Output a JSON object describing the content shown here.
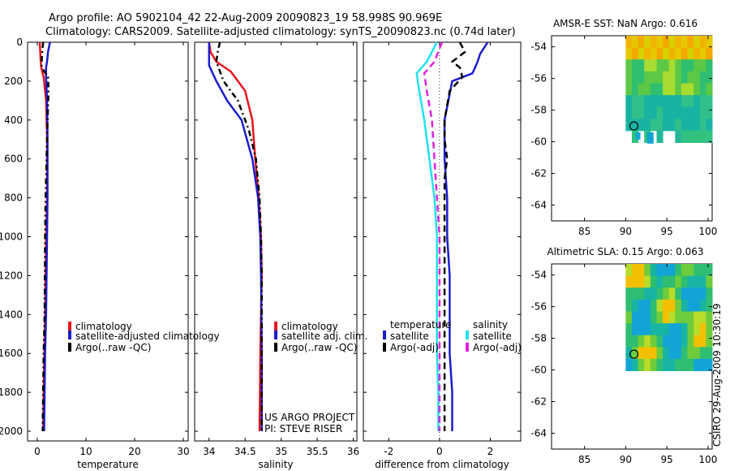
{
  "title_line1": "Argo profile: AO 5902104_42 22-Aug-2009 20090823_19 58.998S 90.969E",
  "title_line2": "Climatology: CARS2009. Satellite-adjusted climatology: synTS_20090823.nc (0.74d later)",
  "credit": "CSIRO 29-Aug-2009 10:30:19",
  "colors": {
    "climatology": "#e8141c",
    "satellite": "#1c1ccc",
    "argo": "#000000",
    "cyan": "#22e0ee",
    "magenta": "#e020e0"
  },
  "depth_axis": {
    "ylim": [
      0,
      2050
    ],
    "ticks": [
      0,
      200,
      400,
      600,
      800,
      1000,
      1200,
      1400,
      1600,
      1800,
      2000
    ]
  },
  "chart_data": [
    {
      "name": "temperature",
      "type": "line",
      "xlabel": "temperature",
      "xlim": [
        -2,
        31
      ],
      "xticks": [
        0,
        10,
        20,
        30
      ],
      "legend": [
        "climatology",
        "satellite-adjusted climatology",
        "Argo(..raw -QC)"
      ],
      "series": [
        {
          "name": "climatology",
          "x": [
            0.5,
            0.6,
            0.7,
            0.8,
            1.3,
            1.8,
            2.0,
            2.0,
            1.8,
            1.6,
            1.3,
            1.2
          ],
          "depth": [
            0,
            50,
            100,
            130,
            180,
            300,
            500,
            800,
            1000,
            1400,
            1800,
            2000
          ]
        },
        {
          "name": "satellite-adjusted climatology",
          "x": [
            2.6,
            2.2,
            2.0,
            1.8,
            1.8,
            2.0,
            2.1,
            2.1,
            2.0,
            1.8,
            1.6,
            1.5,
            1.4
          ],
          "depth": [
            0,
            50,
            100,
            130,
            180,
            300,
            500,
            800,
            1000,
            1400,
            1600,
            1800,
            2000
          ]
        },
        {
          "name": "Argo(..raw -QC)",
          "x": [
            1.2,
            1.0,
            0.9,
            0.9,
            2.2,
            2.3,
            2.0,
            1.7,
            1.6,
            1.5,
            1.3,
            1.2,
            1.1
          ],
          "depth": [
            0,
            50,
            100,
            130,
            180,
            250,
            500,
            800,
            1000,
            1400,
            1600,
            1800,
            2000
          ]
        }
      ]
    },
    {
      "name": "salinity",
      "type": "line",
      "xlabel": "salinity",
      "xlim": [
        33.8,
        36.05
      ],
      "xticks": [
        34,
        34.5,
        35,
        35.5,
        36
      ],
      "legend": [
        "climatology",
        "satellite adj. clim.",
        "Argo(..raw -QC)"
      ],
      "annotation": [
        "US ARGO PROJECT",
        "PI: STEVE RISER"
      ],
      "series": [
        {
          "name": "climatology",
          "x": [
            34.0,
            34.02,
            34.1,
            34.3,
            34.5,
            34.6,
            34.64,
            34.69,
            34.72,
            34.73,
            34.72,
            34.71,
            34.7
          ],
          "depth": [
            0,
            50,
            100,
            150,
            250,
            400,
            600,
            800,
            1000,
            1200,
            1400,
            1600,
            2000
          ]
        },
        {
          "name": "satellite adj. clim.",
          "x": [
            34.0,
            34.0,
            34.0,
            34.1,
            34.25,
            34.45,
            34.6,
            34.68,
            34.71,
            34.72,
            34.73,
            34.73
          ],
          "depth": [
            0,
            80,
            120,
            200,
            300,
            400,
            600,
            800,
            1000,
            1200,
            1600,
            2000
          ]
        },
        {
          "name": "Argo(..raw -QC)",
          "x": [
            34.15,
            34.12,
            34.1,
            34.2,
            34.4,
            34.55,
            34.65,
            34.7,
            34.72,
            34.73,
            34.73
          ],
          "depth": [
            0,
            50,
            100,
            200,
            300,
            450,
            600,
            800,
            1000,
            1200,
            2000
          ]
        }
      ]
    },
    {
      "name": "difference",
      "type": "line",
      "xlabel": "difference from climatology",
      "xlim": [
        -3,
        3.2
      ],
      "xticks": [
        -2,
        0,
        2
      ],
      "legend_left": {
        "title": "temperature",
        "items": [
          "satellite",
          "Argo(-adj)"
        ]
      },
      "legend_right": {
        "title": "salinity",
        "items": [
          "satellite",
          "Argo(-adj)"
        ]
      },
      "series": [
        {
          "name": "temperature satellite",
          "x": [
            1.9,
            1.6,
            1.5,
            1.4,
            1.3,
            0.5,
            0.2,
            0.2,
            0.3,
            0.3,
            0.4,
            0.4,
            0.4,
            0.5,
            0.5
          ],
          "depth": [
            0,
            60,
            100,
            130,
            160,
            200,
            400,
            600,
            800,
            1000,
            1200,
            1400,
            1600,
            1800,
            2000
          ]
        },
        {
          "name": "temperature Argo(-adj)",
          "x": [
            0.8,
            1.0,
            0.5,
            0.8,
            0.9,
            0.4,
            0.2,
            0.2,
            0.3,
            0.2,
            0.2,
            0.2,
            0.2,
            0.2,
            0.2,
            0.2
          ],
          "depth": [
            0,
            50,
            100,
            130,
            180,
            250,
            400,
            500,
            600,
            700,
            800,
            1000,
            1400,
            1600,
            1800,
            2000
          ]
        },
        {
          "name": "salinity satellite",
          "x": [
            -0.1,
            -0.5,
            -0.9,
            -0.8,
            -0.6,
            -0.4,
            -0.2,
            -0.1,
            -0.1,
            -0.1,
            -0.05,
            -0.05
          ],
          "depth": [
            0,
            100,
            160,
            250,
            400,
            600,
            800,
            1000,
            1400,
            1600,
            1800,
            2000
          ]
        },
        {
          "name": "salinity Argo(-adj)",
          "x": [
            0.1,
            -0.2,
            -0.6,
            -0.5,
            -0.3,
            -0.2,
            -0.1,
            0.0,
            0.0,
            0.0
          ],
          "depth": [
            0,
            100,
            160,
            250,
            400,
            600,
            800,
            1000,
            1600,
            2000
          ]
        }
      ]
    },
    {
      "name": "amsr_sst",
      "type": "heatmap",
      "title": "AMSR-E SST: NaN Argo: 0.616",
      "xlim": [
        81,
        100.5
      ],
      "ylim": [
        -65,
        -53.3
      ],
      "xticks": [
        85,
        90,
        95,
        100
      ],
      "yticks": [
        -54,
        -56,
        -58,
        -60,
        -62,
        -64
      ],
      "marker": {
        "lon": 91.0,
        "lat": -59.0
      }
    },
    {
      "name": "altimetric_sla",
      "type": "heatmap",
      "title": "Altimetric SLA: 0.15 Argo: 0.063",
      "xlim": [
        81,
        100.5
      ],
      "ylim": [
        -65,
        -53.3
      ],
      "xticks": [
        85,
        90,
        95,
        100
      ],
      "yticks": [
        -54,
        -56,
        -58,
        -60,
        -62,
        -64
      ],
      "marker": {
        "lon": 91.0,
        "lat": -59.0
      }
    }
  ]
}
